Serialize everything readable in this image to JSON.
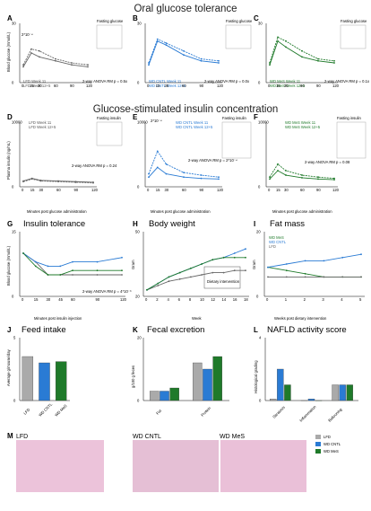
{
  "sections": {
    "ogtt": "Oral glucose tolerance",
    "gsis": "Glucose-stimulated insulin concentration"
  },
  "panels": {
    "A": {
      "label": "A",
      "ylabel": "Blood glucose (mmol/L)",
      "inset": "Fasting glucose",
      "legend": [
        "LFD Week 11",
        "LFD Week 12+5"
      ],
      "stat": "2-way ANOVA RM p = 0.5x",
      "ann": "2*10⁻⁴"
    },
    "B": {
      "label": "B",
      "inset": "Fasting glucose",
      "legend": [
        "WD CNTL Week 11",
        "WD CNTL Week 12+5"
      ],
      "stat": "2-way ANOVA RM p = 0.0x"
    },
    "C": {
      "label": "C",
      "inset": "Fasting glucose",
      "legend": [
        "WD MeS Week 11",
        "WD MeS Week 12+5"
      ],
      "stat": "2-way ANOVA RM p = 0.1x"
    },
    "D": {
      "label": "D",
      "ylabel": "Plasma insulin (ng/mL)",
      "inset": "Fasting insulin",
      "legend": [
        "LFD Week 11",
        "LFD Week 12+5"
      ],
      "stat": "2-way ANOVA RM p = 0.24",
      "xlabel": "Minutes post glucose administration"
    },
    "E": {
      "label": "E",
      "inset": "Fasting insulin",
      "legend": [
        "WD CNTL Week 11",
        "WD CNTL Week 12+5"
      ],
      "stat": "2-way ANOVA RM p = 2*10⁻⁴",
      "ann": "2*10⁻⁴",
      "xlabel": "Minutes post glucose administration"
    },
    "F": {
      "label": "F",
      "inset": "Fasting insulin",
      "legend": [
        "WD MeS Week 11",
        "WD MeS Week 12+5"
      ],
      "stat": "2-way ANOVA RM p = 0.08",
      "xlabel": "Minutes post glucose administration"
    },
    "G": {
      "label": "G",
      "title": "Insulin tolerance",
      "ylabel": "Blood glucose (mmol/L)",
      "xlabel": "Minutes post insulin injection",
      "stat": "2-way ANOVA RM p = 4*10⁻³"
    },
    "H": {
      "label": "H",
      "title": "Body weight",
      "ylabel": "Gram",
      "xlabel": "Week",
      "box": "Dietary intervention"
    },
    "I": {
      "label": "I",
      "title": "Fat mass",
      "ylabel": "Gram",
      "xlabel": "Weeks post dietary intervention",
      "legend": [
        "WD MeS",
        "WD CNTL",
        "LFD"
      ]
    },
    "J": {
      "label": "J",
      "title": "Feed intake",
      "ylabel": "Average g/mouse/day",
      "cats": [
        "LFD",
        "WD CNTL",
        "WD MeS"
      ]
    },
    "K": {
      "label": "K",
      "title": "Fecal excretion",
      "ylabel": "g/100 g feces",
      "cats": [
        "Fat",
        "Protein"
      ]
    },
    "L": {
      "label": "L",
      "title": "NAFLD activity score",
      "ylabel": "Histological grading",
      "cats": [
        "Steatosis",
        "Inflammation",
        "Ballooning"
      ]
    },
    "M": {
      "label": "M",
      "images": [
        "LFD",
        "WD CNTL",
        "WD MeS"
      ],
      "legend": [
        "LFD",
        "WD CNTL",
        "WD MeS"
      ]
    }
  },
  "colors": {
    "lfd": "#666666",
    "cntl": "#2a7bd4",
    "mes": "#1f7a2a",
    "he": "#e9b9d4"
  },
  "chart_data": [
    {
      "type": "line",
      "id": "A",
      "x": [
        0,
        15,
        30,
        60,
        90,
        120
      ],
      "series": [
        {
          "name": "LFD Week 11",
          "values": [
            9,
            17,
            16,
            12,
            10,
            9
          ]
        },
        {
          "name": "LFD Week 12+5",
          "values": [
            8,
            15,
            13,
            11,
            9,
            8
          ]
        }
      ],
      "ylim": [
        0,
        30
      ]
    },
    {
      "type": "line",
      "id": "B",
      "x": [
        0,
        15,
        30,
        60,
        90,
        120
      ],
      "series": [
        {
          "name": "WD CNTL Week 11",
          "values": [
            10,
            22,
            20,
            16,
            12,
            11
          ]
        },
        {
          "name": "WD CNTL Week 12+5",
          "values": [
            9,
            21,
            19,
            14,
            11,
            10
          ]
        }
      ],
      "ylim": [
        0,
        30
      ]
    },
    {
      "type": "line",
      "id": "C",
      "x": [
        0,
        15,
        30,
        60,
        90,
        120
      ],
      "series": [
        {
          "name": "WD MeS Week 11",
          "values": [
            10,
            23,
            21,
            16,
            12,
            11
          ]
        },
        {
          "name": "WD MeS Week 12+5",
          "values": [
            9,
            21,
            18,
            13,
            11,
            10
          ]
        }
      ],
      "ylim": [
        0,
        30
      ]
    },
    {
      "type": "line",
      "id": "D",
      "x": [
        0,
        15,
        30,
        60,
        90,
        120
      ],
      "series": [
        {
          "name": "LFD Week 11",
          "values": [
            800,
            1200,
            900,
            800,
            700,
            600
          ]
        },
        {
          "name": "LFD Week 12+5",
          "values": [
            900,
            1300,
            1000,
            900,
            800,
            700
          ]
        }
      ],
      "ylim": [
        0,
        10000
      ]
    },
    {
      "type": "line",
      "id": "E",
      "x": [
        0,
        15,
        30,
        60,
        90,
        120
      ],
      "series": [
        {
          "name": "WD CNTL Week 11",
          "values": [
            2000,
            5500,
            3500,
            2200,
            1800,
            1500
          ]
        },
        {
          "name": "WD CNTL Week 12+5",
          "values": [
            1500,
            3000,
            2000,
            1500,
            1300,
            1200
          ]
        }
      ],
      "ylim": [
        0,
        10000
      ]
    },
    {
      "type": "line",
      "id": "F",
      "x": [
        0,
        15,
        30,
        60,
        90,
        120
      ],
      "series": [
        {
          "name": "WD MeS Week 11",
          "values": [
            1500,
            3500,
            2500,
            1800,
            1500,
            1300
          ]
        },
        {
          "name": "WD MeS Week 12+5",
          "values": [
            1200,
            2500,
            1800,
            1400,
            1200,
            1100
          ]
        }
      ],
      "ylim": [
        0,
        10000
      ]
    },
    {
      "type": "line",
      "id": "G",
      "x": [
        0,
        15,
        30,
        45,
        60,
        90,
        120
      ],
      "series": [
        {
          "name": "LFD",
          "values": [
            10,
            8,
            5,
            5,
            5,
            5,
            5
          ]
        },
        {
          "name": "WD CNTL",
          "values": [
            10,
            8,
            7,
            7,
            8,
            8,
            9
          ]
        },
        {
          "name": "WD MeS",
          "values": [
            10,
            7,
            5,
            5,
            6,
            6,
            6
          ]
        }
      ],
      "ylim": [
        0,
        15
      ]
    },
    {
      "type": "line",
      "id": "H",
      "x": [
        0,
        2,
        4,
        6,
        8,
        10,
        12,
        14,
        16,
        18
      ],
      "series": [
        {
          "name": "LFD",
          "values": [
            23,
            25,
            27,
            28,
            29,
            30,
            31,
            31,
            32,
            32
          ]
        },
        {
          "name": "WD CNTL",
          "values": [
            23,
            26,
            29,
            31,
            33,
            35,
            37,
            38,
            40,
            42
          ]
        },
        {
          "name": "WD MeS",
          "values": [
            23,
            26,
            29,
            31,
            33,
            35,
            37,
            38,
            38,
            38
          ]
        }
      ],
      "ylim": [
        20,
        50
      ]
    },
    {
      "type": "line",
      "id": "I",
      "x": [
        0,
        1,
        2,
        3,
        4,
        5
      ],
      "series": [
        {
          "name": "WD MeS",
          "values": [
            9,
            8,
            7,
            6,
            6,
            6
          ]
        },
        {
          "name": "WD CNTL",
          "values": [
            9,
            10,
            11,
            11,
            12,
            13
          ]
        },
        {
          "name": "LFD",
          "values": [
            6,
            6,
            6,
            6,
            6,
            6
          ]
        }
      ],
      "ylim": [
        0,
        20
      ]
    },
    {
      "type": "bar",
      "id": "J",
      "categories": [
        "LFD",
        "WD CNTL",
        "WD MeS"
      ],
      "values": [
        3.5,
        3.0,
        3.1
      ],
      "ylim": [
        0,
        5
      ]
    },
    {
      "type": "bar",
      "id": "K",
      "categories": [
        "Fat",
        "Protein"
      ],
      "series": [
        {
          "name": "LFD",
          "values": [
            3,
            12
          ]
        },
        {
          "name": "WD CNTL",
          "values": [
            3,
            10
          ]
        },
        {
          "name": "WD MeS",
          "values": [
            4,
            14
          ]
        }
      ],
      "ylim": [
        0,
        20
      ]
    },
    {
      "type": "bar",
      "id": "L",
      "categories": [
        "Steatosis",
        "Inflammation",
        "Ballooning"
      ],
      "series": [
        {
          "name": "LFD",
          "values": [
            0.1,
            0,
            1
          ]
        },
        {
          "name": "WD CNTL",
          "values": [
            2,
            0.1,
            1
          ]
        },
        {
          "name": "WD MeS",
          "values": [
            1,
            0,
            1
          ]
        }
      ],
      "ylim": [
        0,
        4
      ]
    }
  ]
}
